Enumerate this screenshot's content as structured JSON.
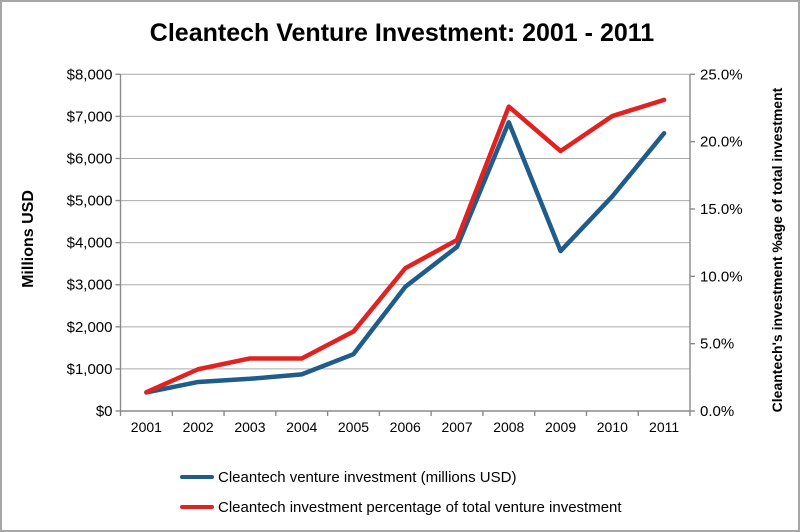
{
  "chart_data": {
    "type": "line",
    "title": "Cleantech Venture Investment: 2001 - 2011",
    "categories": [
      "2001",
      "2002",
      "2003",
      "2004",
      "2005",
      "2006",
      "2007",
      "2008",
      "2009",
      "2010",
      "2011"
    ],
    "series": [
      {
        "name": "Cleantech venture investment (millions USD)",
        "axis": "left",
        "color": "#1F5C8B",
        "values": [
          440,
          690,
          765,
          870,
          1350,
          2950,
          3900,
          6860,
          3800,
          5100,
          6600
        ]
      },
      {
        "name": "Cleantech investment percentage of total venture investment",
        "axis": "right",
        "color": "#E02320",
        "values": [
          1.4,
          3.1,
          3.9,
          3.9,
          5.9,
          10.6,
          12.7,
          22.6,
          19.3,
          21.9,
          23.1
        ]
      }
    ],
    "left_axis": {
      "label": "Millions USD",
      "min": 0,
      "max": 8000,
      "step": 1000,
      "tick_labels": [
        "$0",
        "$1,000",
        "$2,000",
        "$3,000",
        "$4,000",
        "$5,000",
        "$6,000",
        "$7,000",
        "$8,000"
      ]
    },
    "right_axis": {
      "label": "Cleantech's investment %age of total investment",
      "min": 0,
      "max": 25,
      "step": 5,
      "tick_labels": [
        "0.0%",
        "5.0%",
        "10.0%",
        "15.0%",
        "20.0%",
        "25.0%"
      ]
    },
    "grid": true,
    "legend_position": "bottom"
  }
}
